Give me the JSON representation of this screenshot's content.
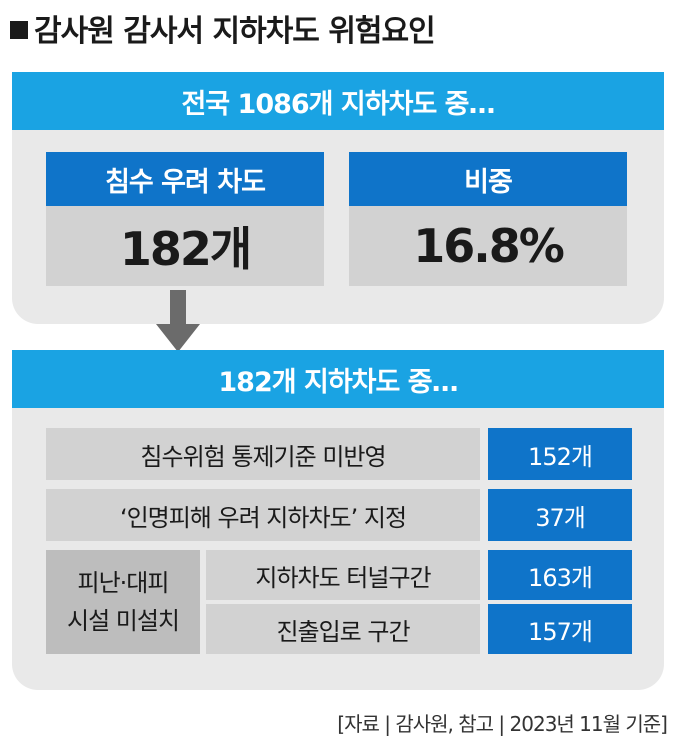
{
  "title": "감사원 감사서 지하차도 위험요인",
  "section1": {
    "banner": "전국 1086개 지하차도 중…",
    "card_left": {
      "header": "침수 우려 차도",
      "value": "182개"
    },
    "card_right": {
      "header": "비중",
      "value": "16.8%"
    }
  },
  "section2": {
    "banner": "182개 지하차도 중…",
    "rows": [
      {
        "label": "침수위험 통제기준 미반영",
        "value": "152개"
      },
      {
        "label": "‘인명피해 우려 지하차도’ 지정",
        "value": "37개"
      }
    ],
    "group": {
      "label_line1": "피난·대피",
      "label_line2": "시설 미설치",
      "items": [
        {
          "label": "지하차도 터널구간",
          "value": "163개"
        },
        {
          "label": "진출입로 구간",
          "value": "157개"
        }
      ]
    }
  },
  "source": "[자료 | 감사원, 참고 | 2023년 11월 기준]",
  "colors": {
    "banner": "#1aa3e3",
    "header": "#0f74c9",
    "panel": "#e9e9e9",
    "cell": "#d2d2d2",
    "arrow": "#6b6b6b"
  }
}
